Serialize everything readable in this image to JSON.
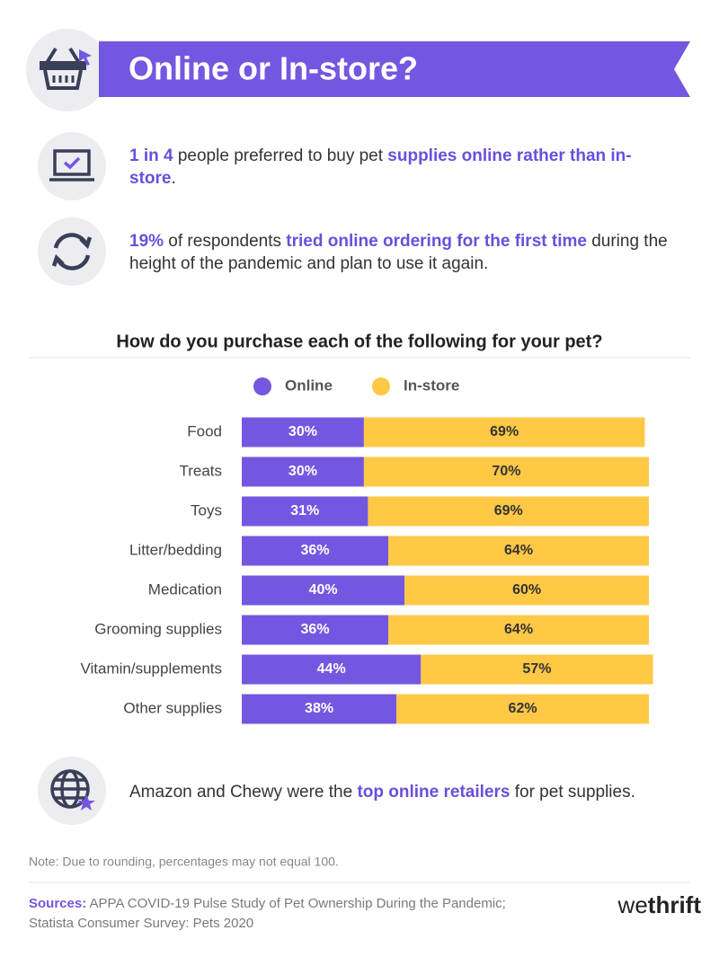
{
  "header": {
    "title": "Online or In-store?"
  },
  "facts": [
    {
      "segments": [
        {
          "text": "1 in 4",
          "highlight": true
        },
        {
          "text": " people preferred to buy pet ",
          "highlight": false
        },
        {
          "text": "supplies online rather than in-store",
          "highlight": true
        },
        {
          "text": ".",
          "highlight": false
        }
      ]
    },
    {
      "segments": [
        {
          "text": "19%",
          "highlight": true
        },
        {
          "text": " of respondents ",
          "highlight": false
        },
        {
          "text": "tried online ordering for the first time",
          "highlight": true
        },
        {
          "text": " during the height of the pandemic and plan to use it again.",
          "highlight": false
        }
      ]
    },
    {
      "segments": [
        {
          "text": "Amazon and Chewy were the ",
          "highlight": false
        },
        {
          "text": "top online retailers",
          "highlight": true
        },
        {
          "text": " for pet supplies.",
          "highlight": false
        }
      ]
    }
  ],
  "chart_data": {
    "type": "stacked_bar_horizontal",
    "title": "How do you purchase each of the following for your pet?",
    "categories": [
      "Food",
      "Treats",
      "Toys",
      "Litter/bedding",
      "Medication",
      "Grooming supplies",
      "Vitamin/supplements",
      "Other supplies"
    ],
    "series": [
      {
        "name": "Online",
        "color": "#7457e0",
        "values": [
          30,
          30,
          31,
          36,
          40,
          36,
          44,
          38
        ],
        "value_labels": [
          "30%",
          "30%",
          "31%",
          "36%",
          "40%",
          "36%",
          "44%",
          "38%"
        ]
      },
      {
        "name": "In-store",
        "color": "#ffc845",
        "values": [
          69,
          70,
          69,
          64,
          60,
          64,
          57,
          62
        ],
        "value_labels": [
          "69%",
          "70%",
          "69%",
          "64%",
          "60%",
          "64%",
          "57%",
          "62%"
        ]
      }
    ],
    "xlim": [
      0,
      100
    ],
    "legend": "top"
  },
  "footer": {
    "note": "Note: Due to rounding, percentages may not equal 100.",
    "sources_label": "Sources:",
    "sources": [
      "APPA COVID-19 Pulse Study of Pet Ownership During the Pandemic;",
      "Statista Consumer Survey: Pets 2020"
    ],
    "logo": [
      "we",
      "thrift"
    ]
  }
}
